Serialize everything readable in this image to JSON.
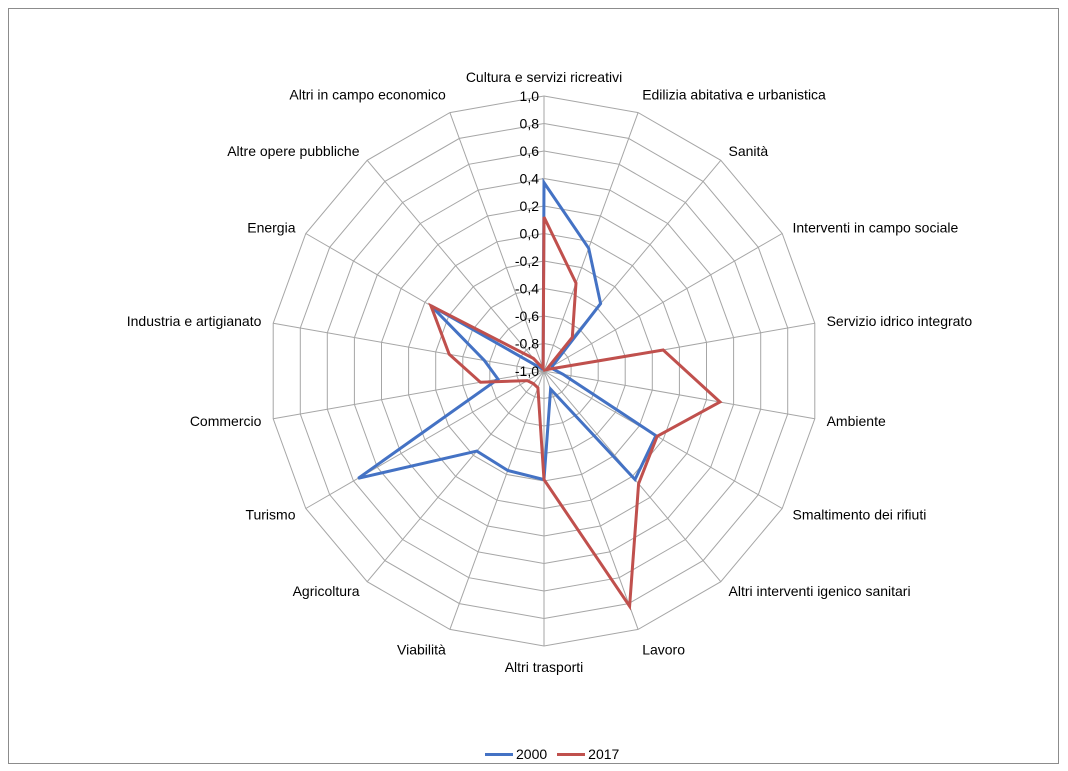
{
  "chart_data": {
    "type": "radar",
    "title": "",
    "categories": [
      "Cultura e servizi ricreativi",
      "Edilizia abitativa e urbanistica",
      "Sanità",
      "Interventi in campo sociale",
      "Servizio idrico integrato",
      "Ambiente",
      "Smaltimento dei rifiuti",
      "Altri interventi igenico sanitari",
      "Lavoro",
      "Altri trasporti",
      "Viabilità",
      "Agricoltura",
      "Turismo",
      "Commercio",
      "Industria e artigianato",
      "Energia",
      "Altre opere pubbliche",
      "Altri in campo economico"
    ],
    "rlim": [
      -1.0,
      1.0
    ],
    "ticks": [
      "1,0",
      "0,8",
      "0,6",
      "0,4",
      "0,2",
      "0,0",
      "-0,2",
      "-0,4",
      "-0,6",
      "-0,8",
      "-1,0"
    ],
    "grid": true,
    "legend_position": "bottom",
    "series": [
      {
        "name": "2000",
        "color": "#4472C4",
        "values": [
          0.37,
          -0.05,
          -0.36,
          -0.93,
          -0.93,
          -0.86,
          -0.06,
          0.03,
          -0.86,
          -0.21,
          -0.23,
          -0.24,
          0.56,
          -0.66,
          -0.56,
          -0.05,
          -0.98,
          -0.98
        ]
      },
      {
        "name": "2017",
        "color": "#C0504D",
        "values": [
          0.12,
          -0.32,
          -0.68,
          -0.98,
          -0.12,
          0.3,
          -0.05,
          0.07,
          0.82,
          -0.21,
          -0.87,
          -0.88,
          -0.86,
          -0.53,
          -0.3,
          -0.05,
          -0.88,
          -0.98
        ]
      }
    ]
  }
}
